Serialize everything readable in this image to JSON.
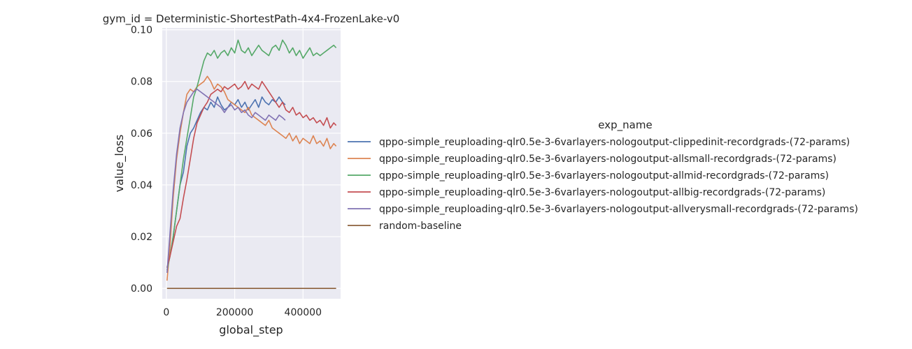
{
  "chart_data": {
    "type": "line",
    "title": "gym_id = Deterministic-ShortestPath-4x4-FrozenLake-v0",
    "xlabel": "global_step",
    "ylabel": "value_loss",
    "xlim": [
      -12000,
      510000
    ],
    "ylim": [
      -0.004,
      0.1007
    ],
    "xticks": [
      0,
      200000,
      400000
    ],
    "xtick_labels": [
      "0",
      "200000",
      "400000"
    ],
    "yticks": [
      0.0,
      0.02,
      0.04,
      0.06,
      0.08,
      0.1
    ],
    "ytick_labels": [
      "0.00",
      "0.02",
      "0.04",
      "0.06",
      "0.08",
      "0.10"
    ],
    "grid": true,
    "legend_title": "exp_name",
    "legend_position": "right",
    "series": [
      {
        "name": "qppo-simple_reuploading-qlr0.5e-3-6varlayers-nologoutput-clippedinit-recordgrads-(72-params)",
        "color": "#4c72b0",
        "x": [
          2000,
          10000,
          20000,
          30000,
          40000,
          50000,
          60000,
          70000,
          80000,
          90000,
          100000,
          110000,
          120000,
          130000,
          140000,
          150000,
          160000,
          170000,
          180000,
          190000,
          200000,
          210000,
          220000,
          230000,
          240000,
          250000,
          260000,
          270000,
          280000,
          290000,
          300000,
          310000,
          320000,
          330000,
          340000,
          348000
        ],
        "y": [
          0.008,
          0.012,
          0.02,
          0.03,
          0.04,
          0.045,
          0.055,
          0.06,
          0.062,
          0.065,
          0.068,
          0.07,
          0.069,
          0.072,
          0.07,
          0.074,
          0.071,
          0.069,
          0.07,
          0.072,
          0.071,
          0.073,
          0.07,
          0.072,
          0.069,
          0.071,
          0.073,
          0.07,
          0.074,
          0.072,
          0.071,
          0.073,
          0.072,
          0.074,
          0.072,
          0.071
        ]
      },
      {
        "name": "qppo-simple_reuploading-qlr0.5e-3-6varlayers-nologoutput-allsmall-recordgrads-(72-params)",
        "color": "#dd8452",
        "x": [
          2000,
          10000,
          20000,
          30000,
          40000,
          50000,
          60000,
          70000,
          80000,
          90000,
          100000,
          110000,
          120000,
          130000,
          140000,
          150000,
          160000,
          170000,
          180000,
          190000,
          200000,
          210000,
          220000,
          230000,
          240000,
          250000,
          260000,
          270000,
          280000,
          290000,
          300000,
          310000,
          320000,
          330000,
          340000,
          350000,
          360000,
          370000,
          380000,
          390000,
          400000,
          410000,
          420000,
          430000,
          440000,
          450000,
          460000,
          470000,
          480000,
          490000,
          497000
        ],
        "y": [
          0.003,
          0.015,
          0.035,
          0.05,
          0.06,
          0.068,
          0.075,
          0.077,
          0.076,
          0.078,
          0.079,
          0.08,
          0.082,
          0.08,
          0.077,
          0.079,
          0.078,
          0.076,
          0.073,
          0.072,
          0.071,
          0.07,
          0.069,
          0.068,
          0.07,
          0.067,
          0.066,
          0.065,
          0.064,
          0.063,
          0.065,
          0.062,
          0.061,
          0.06,
          0.059,
          0.058,
          0.06,
          0.057,
          0.059,
          0.056,
          0.058,
          0.057,
          0.056,
          0.059,
          0.056,
          0.057,
          0.055,
          0.058,
          0.054,
          0.056,
          0.055
        ]
      },
      {
        "name": "qppo-simple_reuploading-qlr0.5e-3-6varlayers-nologoutput-allmid-recordgrads-(72-params)",
        "color": "#55a868",
        "x": [
          2000,
          10000,
          20000,
          30000,
          40000,
          50000,
          60000,
          70000,
          80000,
          90000,
          100000,
          110000,
          120000,
          130000,
          140000,
          150000,
          160000,
          170000,
          180000,
          190000,
          200000,
          210000,
          220000,
          230000,
          240000,
          250000,
          260000,
          270000,
          280000,
          290000,
          300000,
          310000,
          320000,
          330000,
          340000,
          350000,
          360000,
          370000,
          380000,
          390000,
          400000,
          410000,
          420000,
          430000,
          440000,
          450000,
          460000,
          470000,
          480000,
          490000,
          497000
        ],
        "y": [
          0.007,
          0.012,
          0.02,
          0.03,
          0.04,
          0.05,
          0.058,
          0.066,
          0.074,
          0.078,
          0.083,
          0.088,
          0.091,
          0.09,
          0.092,
          0.089,
          0.091,
          0.092,
          0.09,
          0.093,
          0.091,
          0.096,
          0.092,
          0.091,
          0.093,
          0.09,
          0.092,
          0.094,
          0.092,
          0.091,
          0.09,
          0.093,
          0.094,
          0.092,
          0.096,
          0.094,
          0.091,
          0.093,
          0.09,
          0.092,
          0.089,
          0.091,
          0.093,
          0.09,
          0.091,
          0.09,
          0.091,
          0.092,
          0.093,
          0.094,
          0.093
        ]
      },
      {
        "name": "qppo-simple_reuploading-qlr0.5e-3-6varlayers-nologoutput-allbig-recordgrads-(72-params)",
        "color": "#c44e52",
        "x": [
          2000,
          10000,
          20000,
          30000,
          40000,
          50000,
          60000,
          70000,
          80000,
          90000,
          100000,
          110000,
          120000,
          130000,
          140000,
          150000,
          160000,
          170000,
          180000,
          190000,
          200000,
          210000,
          220000,
          230000,
          240000,
          250000,
          260000,
          270000,
          280000,
          290000,
          300000,
          310000,
          320000,
          330000,
          340000,
          350000,
          360000,
          370000,
          380000,
          390000,
          400000,
          410000,
          420000,
          430000,
          440000,
          450000,
          460000,
          470000,
          480000,
          490000,
          497000
        ],
        "y": [
          0.008,
          0.012,
          0.018,
          0.024,
          0.027,
          0.035,
          0.042,
          0.05,
          0.058,
          0.064,
          0.067,
          0.07,
          0.072,
          0.075,
          0.076,
          0.077,
          0.076,
          0.078,
          0.077,
          0.078,
          0.079,
          0.077,
          0.078,
          0.08,
          0.077,
          0.079,
          0.078,
          0.077,
          0.08,
          0.078,
          0.076,
          0.074,
          0.072,
          0.07,
          0.072,
          0.069,
          0.068,
          0.07,
          0.067,
          0.068,
          0.066,
          0.067,
          0.065,
          0.066,
          0.064,
          0.065,
          0.063,
          0.066,
          0.062,
          0.064,
          0.063
        ]
      },
      {
        "name": "qppo-simple_reuploading-qlr0.5e-3-6varlayers-nologoutput-allverysmall-recordgrads-(72-params)",
        "color": "#8172b3",
        "x": [
          2000,
          10000,
          20000,
          30000,
          40000,
          50000,
          60000,
          70000,
          80000,
          90000,
          100000,
          110000,
          120000,
          130000,
          140000,
          150000,
          160000,
          170000,
          180000,
          190000,
          200000,
          210000,
          220000,
          230000,
          240000,
          250000,
          260000,
          270000,
          280000,
          290000,
          300000,
          310000,
          320000,
          330000,
          340000,
          348000
        ],
        "y": [
          0.006,
          0.02,
          0.038,
          0.052,
          0.062,
          0.068,
          0.072,
          0.074,
          0.076,
          0.077,
          0.076,
          0.075,
          0.074,
          0.073,
          0.072,
          0.071,
          0.07,
          0.068,
          0.07,
          0.071,
          0.069,
          0.07,
          0.068,
          0.069,
          0.067,
          0.066,
          0.068,
          0.067,
          0.066,
          0.065,
          0.067,
          0.066,
          0.065,
          0.067,
          0.066,
          0.065
        ]
      },
      {
        "name": "random-baseline",
        "color": "#8c613c",
        "x": [
          2000,
          497000
        ],
        "y": [
          0.0,
          0.0
        ]
      }
    ]
  }
}
